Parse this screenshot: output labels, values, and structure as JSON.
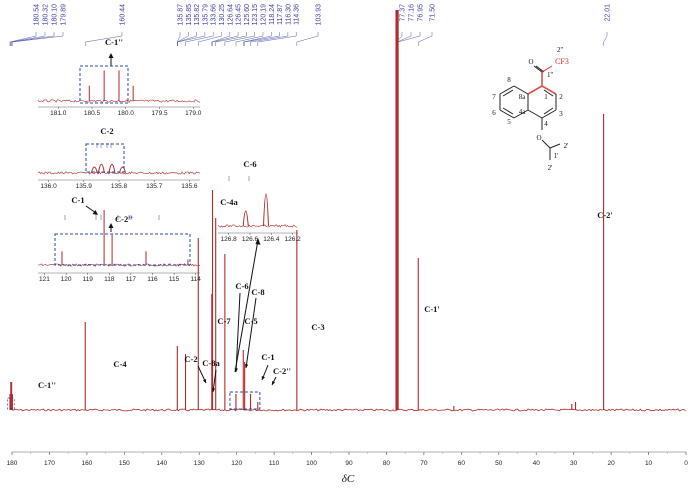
{
  "chart_data": {
    "type": "line",
    "xlabel": "δC",
    "xlim": [
      180,
      0
    ],
    "x_ticks": [
      "180",
      "170",
      "160",
      "150",
      "140",
      "130",
      "120",
      "110",
      "100",
      "90",
      "80",
      "70",
      "60",
      "50",
      "40",
      "30",
      "20",
      "10",
      "0"
    ],
    "peak_list_labels": [
      "180.54",
      "180.32",
      "180.10",
      "179.89",
      "160.44",
      "135.87",
      "135.85",
      "135.82",
      "135.79",
      "133.66",
      "130.25",
      "126.64",
      "126.45",
      "125.60",
      "123.15",
      "120.19",
      "118.24",
      "117.87",
      "116.30",
      "114.36",
      "103.93",
      "77.37",
      "77.16",
      "76.95",
      "71.50",
      "22.01"
    ],
    "peaks": [
      {
        "x": 180.54,
        "h": 0.04
      },
      {
        "x": 180.32,
        "h": 0.07
      },
      {
        "x": 180.1,
        "h": 0.07
      },
      {
        "x": 179.89,
        "h": 0.04
      },
      {
        "x": 160.44,
        "h": 0.22
      },
      {
        "x": 135.85,
        "h": 0.16
      },
      {
        "x": 133.66,
        "h": 0.14
      },
      {
        "x": 130.25,
        "h": 0.43
      },
      {
        "x": 126.64,
        "h": 0.29
      },
      {
        "x": 126.45,
        "h": 0.55
      },
      {
        "x": 125.6,
        "h": 0.48
      },
      {
        "x": 123.15,
        "h": 0.39
      },
      {
        "x": 120.19,
        "h": 0.04
      },
      {
        "x": 118.24,
        "h": 0.15
      },
      {
        "x": 117.87,
        "h": 0.12
      },
      {
        "x": 116.3,
        "h": 0.04
      },
      {
        "x": 114.36,
        "h": 0.02
      },
      {
        "x": 103.93,
        "h": 0.45
      },
      {
        "x": 77.37,
        "h": 1.0
      },
      {
        "x": 77.16,
        "h": 1.0
      },
      {
        "x": 76.95,
        "h": 1.0
      },
      {
        "x": 71.5,
        "h": 0.38
      },
      {
        "x": 22.01,
        "h": 0.74
      },
      {
        "x": 62.0,
        "h": 0.01
      },
      {
        "x": 29.5,
        "h": 0.02
      },
      {
        "x": 30.5,
        "h": 0.015
      }
    ],
    "assignments": [
      {
        "label": "C-1''",
        "x": 180.2,
        "h": 0.04
      },
      {
        "label": "C-4",
        "x": 160.44,
        "h": 0.22
      },
      {
        "label": "C-2",
        "x": 135.85,
        "h": 0.16
      },
      {
        "label": "C-8a",
        "x": 133.66,
        "h": 0.14
      },
      {
        "label": "C-7",
        "x": 130.25,
        "h": 0.43
      },
      {
        "label": "C-6",
        "x": 126.45,
        "h": 0.55
      },
      {
        "label": "C-8",
        "x": 125.6,
        "h": 0.48
      },
      {
        "label": "C-5",
        "x": 123.15,
        "h": 0.39
      },
      {
        "label": "C-1",
        "x": 118.24,
        "h": 0.15
      },
      {
        "label": "C-2''",
        "x": 117.87,
        "h": 0.12
      },
      {
        "label": "C-3",
        "x": 103.93,
        "h": 0.45
      },
      {
        "label": "C-1'",
        "x": 71.5,
        "h": 0.38
      },
      {
        "label": "C-2'",
        "x": 22.01,
        "h": 0.74
      }
    ],
    "insets": [
      {
        "id": "c1pp",
        "label": "C-1''",
        "xlim": [
          181.3,
          178.9
        ],
        "ticks": [
          "181.0",
          "180.5",
          "180.0",
          "179.5",
          "179.0"
        ],
        "tick_values": [
          181.0,
          180.5,
          180.0,
          179.5,
          179.0
        ],
        "peaks": [
          {
            "x": 180.54,
            "h": 0.45
          },
          {
            "x": 180.32,
            "h": 0.9
          },
          {
            "x": 180.1,
            "h": 0.9
          },
          {
            "x": 179.89,
            "h": 0.45
          }
        ]
      },
      {
        "id": "c2",
        "label": "C-2",
        "xlim": [
          136.03,
          135.57
        ],
        "ticks": [
          "136.0",
          "135.9",
          "135.8",
          "135.7",
          "135.6"
        ],
        "tick_values": [
          136.0,
          135.9,
          135.8,
          135.7,
          135.6
        ],
        "peaks": [
          {
            "x": 135.87,
            "h": 0.45
          },
          {
            "x": 135.85,
            "h": 0.7
          },
          {
            "x": 135.82,
            "h": 0.7
          },
          {
            "x": 135.79,
            "h": 0.45
          }
        ]
      },
      {
        "id": "c1c2pp",
        "labels": [
          "C-1",
          "C-2''"
        ],
        "xlim": [
          121.3,
          113.8
        ],
        "ticks": [
          "121",
          "120",
          "119",
          "118",
          "117",
          "116",
          "115",
          "114"
        ],
        "tick_values": [
          121,
          120,
          119,
          118,
          117,
          116,
          115,
          114
        ],
        "peaks": [
          {
            "x": 120.19,
            "h": 0.25
          },
          {
            "x": 118.24,
            "h": 1.0
          },
          {
            "x": 117.87,
            "h": 0.55
          },
          {
            "x": 116.3,
            "h": 0.25
          },
          {
            "x": 114.36,
            "h": 0.1
          }
        ]
      },
      {
        "id": "c4a_c6",
        "labels": [
          "C-4a",
          "C-6"
        ],
        "xlim": [
          126.9,
          126.15
        ],
        "ticks": [
          "126.8",
          "126.6",
          "126.4",
          "126.2"
        ],
        "tick_values": [
          126.8,
          126.6,
          126.4,
          126.2
        ],
        "peaks": [
          {
            "x": 126.64,
            "h": 0.45
          },
          {
            "x": 126.45,
            "h": 1.0
          }
        ]
      }
    ]
  },
  "molecule": {
    "atom_labels": [
      "O",
      "CF3",
      "2''",
      "1''",
      "8",
      "8a",
      "1",
      "2",
      "7",
      "6",
      "5",
      "4a",
      "4",
      "3",
      "O",
      "1'",
      "2'",
      "2'"
    ],
    "colors": {
      "ring_highlight": "#e05050",
      "bond": "#222222",
      "cf3": "#e03030"
    }
  },
  "colors": {
    "spectrum": "#b22a2a",
    "peak_label": "#3f3fa8",
    "inset_box": "#2b4aa8"
  }
}
